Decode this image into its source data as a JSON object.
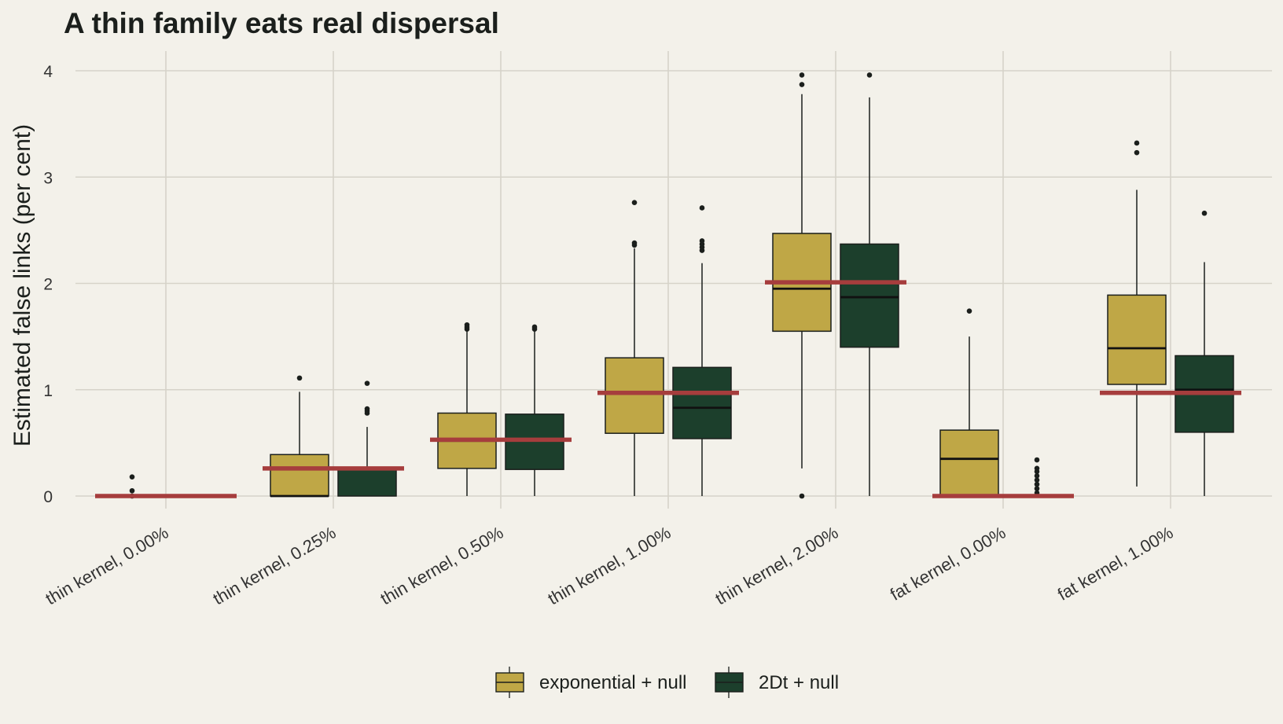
{
  "chart_data": {
    "type": "boxplot",
    "title": "A thin family eats real dispersal",
    "xlabel": "",
    "ylabel": "Estimated false links (per cent)",
    "ylim": [
      -0.22,
      4.15
    ],
    "yticks": [
      0,
      1,
      2,
      3,
      4
    ],
    "grid": true,
    "legend_position": "bottom",
    "categories": [
      "thin kernel, 0.00%",
      "thin kernel, 0.25%",
      "thin kernel, 0.50%",
      "thin kernel, 1.00%",
      "thin kernel, 2.00%",
      "fat kernel, 0.00%",
      "fat kernel, 1.00%"
    ],
    "true_values": [
      0.0,
      0.26,
      0.53,
      0.97,
      2.01,
      0.0,
      0.97
    ],
    "true_value_color": "#a63d3d",
    "series": [
      {
        "name": "exponential + null",
        "color": "#bfa746",
        "boxes": [
          {
            "min": 0,
            "q1": 0,
            "median": 0,
            "q3": 0,
            "max": 0,
            "outliers": [
              0.05,
              0.18,
              0.0
            ]
          },
          {
            "min": 0,
            "q1": 0,
            "median": 0.0,
            "q3": 0.39,
            "max": 0.98,
            "outliers": [
              1.11
            ]
          },
          {
            "min": 0,
            "q1": 0.26,
            "median": 0.52,
            "q3": 0.78,
            "max": 1.55,
            "outliers": [
              1.57,
              1.59,
              1.61
            ]
          },
          {
            "min": 0,
            "q1": 0.59,
            "median": 0.97,
            "q3": 1.3,
            "max": 2.33,
            "outliers": [
              2.36,
              2.38,
              2.76
            ]
          },
          {
            "min": 0.26,
            "q1": 1.55,
            "median": 1.95,
            "q3": 2.47,
            "max": 3.78,
            "outliers": [
              0.0,
              3.87,
              3.96
            ]
          },
          {
            "min": 0,
            "q1": 0,
            "median": 0.35,
            "q3": 0.62,
            "max": 1.5,
            "outliers": [
              1.74
            ]
          },
          {
            "min": 0.09,
            "q1": 1.05,
            "median": 1.39,
            "q3": 1.89,
            "max": 2.88,
            "outliers": [
              3.23,
              3.32
            ]
          }
        ]
      },
      {
        "name": "2Dt + null",
        "color": "#1c3f2c",
        "boxes": [
          null,
          {
            "min": 0,
            "q1": 0,
            "median": 0.26,
            "q3": 0.26,
            "max": 0.65,
            "outliers": [
              0.78,
              0.8,
              0.82,
              1.06
            ]
          },
          {
            "min": 0,
            "q1": 0.25,
            "median": 0.53,
            "q3": 0.77,
            "max": 1.55,
            "outliers": [
              1.57,
              1.59
            ]
          },
          {
            "min": 0,
            "q1": 0.54,
            "median": 0.83,
            "q3": 1.21,
            "max": 2.19,
            "outliers": [
              2.31,
              2.34,
              2.37,
              2.4,
              2.71
            ]
          },
          {
            "min": 0,
            "q1": 1.4,
            "median": 1.87,
            "q3": 2.37,
            "max": 3.75,
            "outliers": [
              3.96
            ]
          },
          {
            "min": 0,
            "q1": 0,
            "median": 0,
            "q3": 0,
            "max": 0,
            "outliers": [
              0.03,
              0.07,
              0.11,
              0.15,
              0.19,
              0.23,
              0.26,
              0.34
            ]
          },
          {
            "min": 0,
            "q1": 0.6,
            "median": 1.0,
            "q3": 1.32,
            "max": 2.2,
            "outliers": [
              2.66
            ]
          }
        ]
      }
    ]
  }
}
